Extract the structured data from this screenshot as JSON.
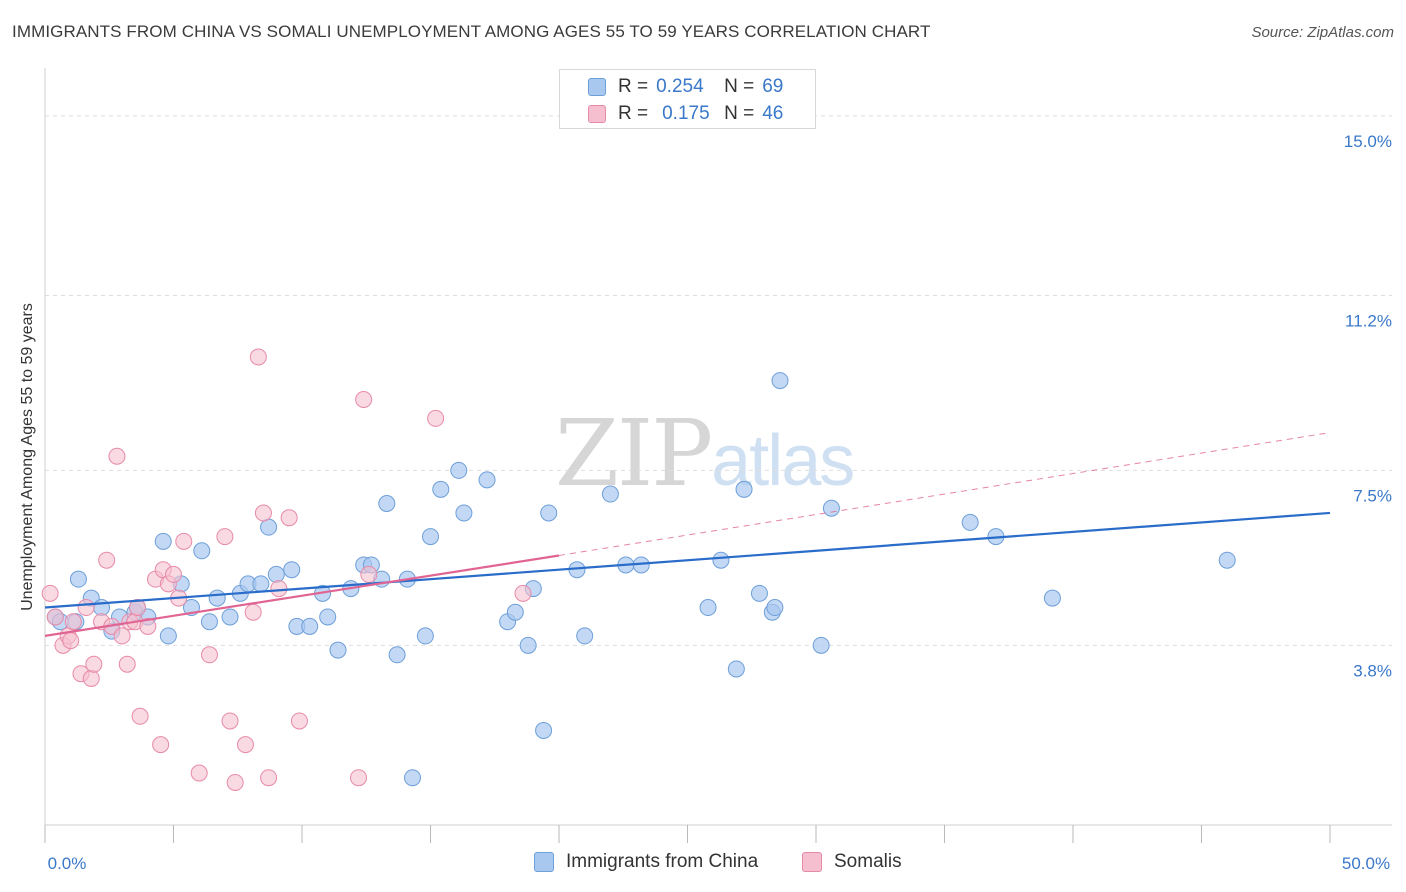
{
  "header": {
    "title": "IMMIGRANTS FROM CHINA VS SOMALI UNEMPLOYMENT AMONG AGES 55 TO 59 YEARS CORRELATION CHART",
    "source": "Source: ZipAtlas.com"
  },
  "watermark": {
    "zip": "ZIP",
    "atlas": "atlas"
  },
  "legend": {
    "rows": [
      {
        "r_label": "R =",
        "r_value": "0.254",
        "n_label": "N =",
        "n_value": "69"
      },
      {
        "r_label": "R =",
        "r_value": "0.175",
        "n_label": "N =",
        "n_value": "46"
      }
    ]
  },
  "bottom_legend": [
    {
      "label": "Immigrants from China"
    },
    {
      "label": "Somalis"
    }
  ],
  "colors": {
    "china_fill": "#a9c8ef",
    "china_stroke": "#6d9fd9",
    "china_line": "#2a6cc9",
    "somali_fill": "#f5bfcf",
    "somali_stroke": "#e78aa8",
    "somali_line": "#e06593",
    "grid": "#dedede",
    "axis_text": "#3a78c9"
  },
  "chart_data": {
    "type": "scatter",
    "title": "IMMIGRANTS FROM CHINA VS SOMALI UNEMPLOYMENT AMONG AGES 55 TO 59 YEARS CORRELATION CHART",
    "xlabel": "",
    "ylabel": "Unemployment Among Ages 55 to 59 years",
    "xlim": [
      0,
      50
    ],
    "ylim": [
      0,
      15.8
    ],
    "x_tick_labels": [
      {
        "value": 0,
        "label": "0.0%"
      },
      {
        "value": 50,
        "label": "50.0%"
      }
    ],
    "y_tick_labels": [
      {
        "value": 3.8,
        "label": "3.8%"
      },
      {
        "value": 7.5,
        "label": "7.5%"
      },
      {
        "value": 11.2,
        "label": "11.2%"
      },
      {
        "value": 15.0,
        "label": "15.0%"
      }
    ],
    "series": [
      {
        "name": "Immigrants from China",
        "trend": {
          "x": [
            0,
            50
          ],
          "y": [
            4.6,
            6.6
          ]
        },
        "points": [
          [
            0.4,
            4.4
          ],
          [
            0.6,
            4.3
          ],
          [
            1.2,
            4.3
          ],
          [
            1.3,
            5.2
          ],
          [
            1.8,
            4.8
          ],
          [
            2.2,
            4.6
          ],
          [
            2.6,
            4.1
          ],
          [
            2.9,
            4.4
          ],
          [
            3.5,
            4.5
          ],
          [
            3.6,
            4.6
          ],
          [
            4.0,
            4.4
          ],
          [
            4.6,
            6.0
          ],
          [
            4.8,
            4.0
          ],
          [
            5.3,
            5.1
          ],
          [
            5.7,
            4.6
          ],
          [
            6.1,
            5.8
          ],
          [
            6.4,
            4.3
          ],
          [
            6.7,
            4.8
          ],
          [
            7.2,
            4.4
          ],
          [
            7.6,
            4.9
          ],
          [
            7.9,
            5.1
          ],
          [
            8.4,
            5.1
          ],
          [
            8.7,
            6.3
          ],
          [
            9.0,
            5.3
          ],
          [
            9.6,
            5.4
          ],
          [
            9.8,
            4.2
          ],
          [
            10.3,
            4.2
          ],
          [
            10.8,
            4.9
          ],
          [
            11.0,
            4.4
          ],
          [
            11.4,
            3.7
          ],
          [
            11.9,
            5.0
          ],
          [
            12.4,
            5.5
          ],
          [
            12.7,
            5.5
          ],
          [
            13.1,
            5.2
          ],
          [
            13.3,
            6.8
          ],
          [
            13.7,
            3.6
          ],
          [
            14.1,
            5.2
          ],
          [
            14.8,
            4.0
          ],
          [
            15.0,
            6.1
          ],
          [
            15.4,
            7.1
          ],
          [
            16.1,
            7.5
          ],
          [
            16.3,
            6.6
          ],
          [
            17.2,
            7.3
          ],
          [
            18.0,
            4.3
          ],
          [
            18.3,
            4.5
          ],
          [
            18.8,
            3.8
          ],
          [
            19.0,
            5.0
          ],
          [
            19.4,
            2.0
          ],
          [
            19.6,
            6.6
          ],
          [
            20.7,
            5.4
          ],
          [
            21.0,
            4.0
          ],
          [
            22.0,
            7.0
          ],
          [
            22.6,
            5.5
          ],
          [
            23.2,
            5.5
          ],
          [
            25.8,
            4.6
          ],
          [
            26.3,
            5.6
          ],
          [
            26.9,
            3.3
          ],
          [
            27.2,
            7.1
          ],
          [
            27.8,
            4.9
          ],
          [
            28.3,
            4.5
          ],
          [
            28.4,
            4.6
          ],
          [
            28.6,
            9.4
          ],
          [
            30.2,
            3.8
          ],
          [
            30.6,
            6.7
          ],
          [
            36.0,
            6.4
          ],
          [
            37.0,
            6.1
          ],
          [
            39.2,
            4.8
          ],
          [
            46.0,
            5.6
          ],
          [
            14.3,
            1.0
          ]
        ]
      },
      {
        "name": "Somalis",
        "trend": {
          "x": [
            0,
            20
          ],
          "y": [
            4.0,
            5.7
          ]
        },
        "trend_extension": {
          "x": [
            20,
            50
          ],
          "y": [
            5.7,
            8.3
          ]
        },
        "points": [
          [
            0.2,
            4.9
          ],
          [
            0.4,
            4.4
          ],
          [
            0.7,
            3.8
          ],
          [
            0.9,
            4.0
          ],
          [
            1.0,
            3.9
          ],
          [
            1.1,
            4.3
          ],
          [
            1.4,
            3.2
          ],
          [
            1.6,
            4.6
          ],
          [
            1.8,
            3.1
          ],
          [
            1.9,
            3.4
          ],
          [
            2.2,
            4.3
          ],
          [
            2.4,
            5.6
          ],
          [
            2.6,
            4.2
          ],
          [
            2.8,
            7.8
          ],
          [
            3.0,
            4.0
          ],
          [
            3.2,
            3.4
          ],
          [
            3.3,
            4.3
          ],
          [
            3.5,
            4.3
          ],
          [
            3.6,
            4.6
          ],
          [
            3.7,
            2.3
          ],
          [
            4.0,
            4.2
          ],
          [
            4.3,
            5.2
          ],
          [
            4.5,
            1.7
          ],
          [
            4.6,
            5.4
          ],
          [
            4.8,
            5.1
          ],
          [
            5.0,
            5.3
          ],
          [
            5.2,
            4.8
          ],
          [
            5.4,
            6.0
          ],
          [
            6.0,
            1.1
          ],
          [
            6.4,
            3.6
          ],
          [
            7.0,
            6.1
          ],
          [
            7.2,
            2.2
          ],
          [
            7.4,
            0.9
          ],
          [
            7.8,
            1.7
          ],
          [
            8.1,
            4.5
          ],
          [
            8.3,
            9.9
          ],
          [
            8.5,
            6.6
          ],
          [
            8.7,
            1.0
          ],
          [
            9.1,
            5.0
          ],
          [
            9.5,
            6.5
          ],
          [
            9.9,
            2.2
          ],
          [
            12.2,
            1.0
          ],
          [
            12.4,
            9.0
          ],
          [
            12.6,
            5.3
          ],
          [
            15.2,
            8.6
          ],
          [
            18.6,
            4.9
          ]
        ]
      }
    ]
  }
}
